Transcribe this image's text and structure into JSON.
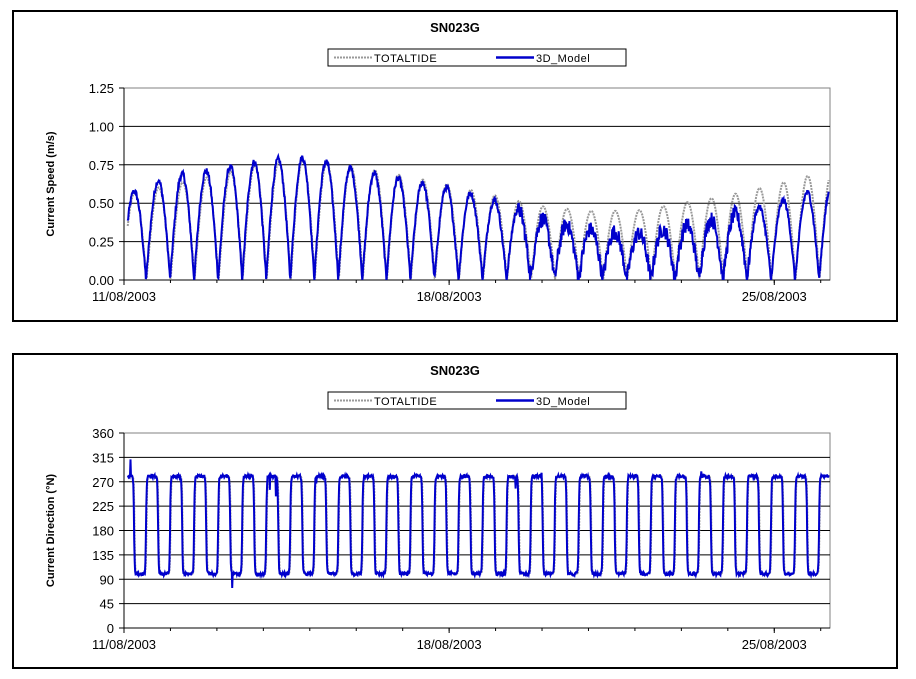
{
  "chart_data": [
    {
      "type": "line",
      "title": "SN023G",
      "xlabel": "",
      "ylabel": "Current Speed (m/s)",
      "ylim": [
        0,
        1.25
      ],
      "yticks": [
        "0.00",
        "0.25",
        "0.50",
        "0.75",
        "1.00",
        "1.25"
      ],
      "xlim_days": [
        11.0,
        26.2
      ],
      "xticks": [
        {
          "label": "11/08/2003",
          "day": 11
        },
        {
          "label": "18/08/2003",
          "day": 18
        },
        {
          "label": "25/08/2003",
          "day": 25
        }
      ],
      "grid": true,
      "legend_position": "top-center",
      "series": [
        {
          "name": "TOTALTIDE",
          "color": "#999999",
          "envelope": [
            {
              "date": "11/08/2003",
              "peak": 0.55
            },
            {
              "date": "12/08/2003",
              "peak": 0.62
            },
            {
              "date": "13/08/2003",
              "peak": 0.68
            },
            {
              "date": "14/08/2003",
              "peak": 0.76
            },
            {
              "date": "15/08/2003",
              "peak": 0.78
            },
            {
              "date": "16/08/2003",
              "peak": 0.74
            },
            {
              "date": "17/08/2003",
              "peak": 0.68
            },
            {
              "date": "18/08/2003",
              "peak": 0.62
            },
            {
              "date": "19/08/2003",
              "peak": 0.55
            },
            {
              "date": "20/08/2003",
              "peak": 0.48
            },
            {
              "date": "21/08/2003",
              "peak": 0.45
            },
            {
              "date": "22/08/2003",
              "peak": 0.45
            },
            {
              "date": "23/08/2003",
              "peak": 0.5
            },
            {
              "date": "24/08/2003",
              "peak": 0.55
            },
            {
              "date": "25/08/2003",
              "peak": 0.62
            },
            {
              "date": "26/08/2003",
              "peak": 0.7
            }
          ]
        },
        {
          "name": "3D_Model",
          "color": "#0000cc",
          "envelope": [
            {
              "date": "11/08/2003",
              "peak": 0.55
            },
            {
              "date": "12/08/2003",
              "peak": 0.68
            },
            {
              "date": "13/08/2003",
              "peak": 0.72
            },
            {
              "date": "14/08/2003",
              "peak": 0.78
            },
            {
              "date": "15/08/2003",
              "peak": 0.8
            },
            {
              "date": "16/08/2003",
              "peak": 0.72
            },
            {
              "date": "17/08/2003",
              "peak": 0.66
            },
            {
              "date": "18/08/2003",
              "peak": 0.6
            },
            {
              "date": "19/08/2003",
              "peak": 0.52
            },
            {
              "date": "20/08/2003",
              "peak": 0.4
            },
            {
              "date": "21/08/2003",
              "peak": 0.33
            },
            {
              "date": "22/08/2003",
              "peak": 0.3
            },
            {
              "date": "23/08/2003",
              "peak": 0.35
            },
            {
              "date": "24/08/2003",
              "peak": 0.42
            },
            {
              "date": "25/08/2003",
              "peak": 0.5
            },
            {
              "date": "26/08/2003",
              "peak": 0.6
            }
          ]
        }
      ]
    },
    {
      "type": "line",
      "title": "SN023G",
      "xlabel": "",
      "ylabel": "Current Direction (°N)",
      "ylim": [
        0,
        360
      ],
      "yticks": [
        "0",
        "45",
        "90",
        "135",
        "180",
        "225",
        "270",
        "315",
        "360"
      ],
      "xlim_days": [
        11.0,
        26.2
      ],
      "xticks": [
        {
          "label": "11/08/2003",
          "day": 11
        },
        {
          "label": "18/08/2003",
          "day": 18
        },
        {
          "label": "25/08/2003",
          "day": 25
        }
      ],
      "grid": true,
      "legend_position": "top-center",
      "series": [
        {
          "name": "TOTALTIDE",
          "color": "#999999",
          "flood_direction": 280,
          "ebb_direction": 100
        },
        {
          "name": "3D_Model",
          "color": "#0000cc",
          "flood_direction": 280,
          "ebb_direction": 100
        }
      ]
    }
  ]
}
